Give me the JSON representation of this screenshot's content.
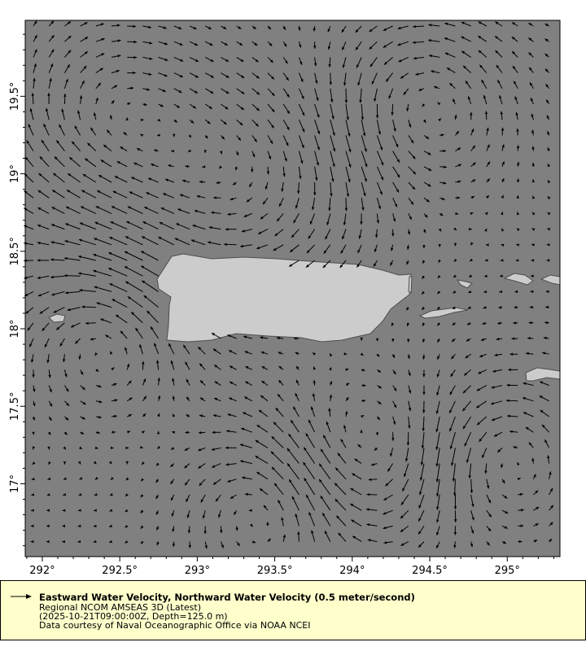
{
  "chart_data": {
    "type": "vector-map",
    "x_axis": {
      "range_deg_east": [
        291.89,
        295.34
      ],
      "tick_labels": [
        "292°",
        "292.5°",
        "293°",
        "293.5°",
        "294°",
        "294.5°",
        "295°"
      ],
      "tick_values": [
        292,
        292.5,
        293,
        293.5,
        294,
        294.5,
        295
      ]
    },
    "y_axis": {
      "range_deg_north": [
        16.53,
        19.99
      ],
      "tick_labels": [
        "17°",
        "17.5°",
        "18°",
        "18.5°",
        "19°",
        "19.5°"
      ],
      "tick_values": [
        17,
        17.5,
        18,
        18.5,
        19,
        19.5
      ]
    },
    "grid": false,
    "colors": {
      "ocean": "#808080",
      "land": "#cccccc",
      "coastline": "#4d4d4d",
      "vectors": "#000000",
      "legend_bg": "#ffffcc"
    }
  },
  "legend": {
    "title": "Eastward Water Velocity, Northward Water Velocity (0.5 meter/second)",
    "line2": "Regional NCOM AMSEAS 3D (Latest)",
    "line3": "(2025-10-21T09:00:00Z, Depth=125.0 m)",
    "line4": "Data courtesy of Naval Oceanographic Office via NOAA NCEI",
    "icon": "arrow-right-icon"
  }
}
